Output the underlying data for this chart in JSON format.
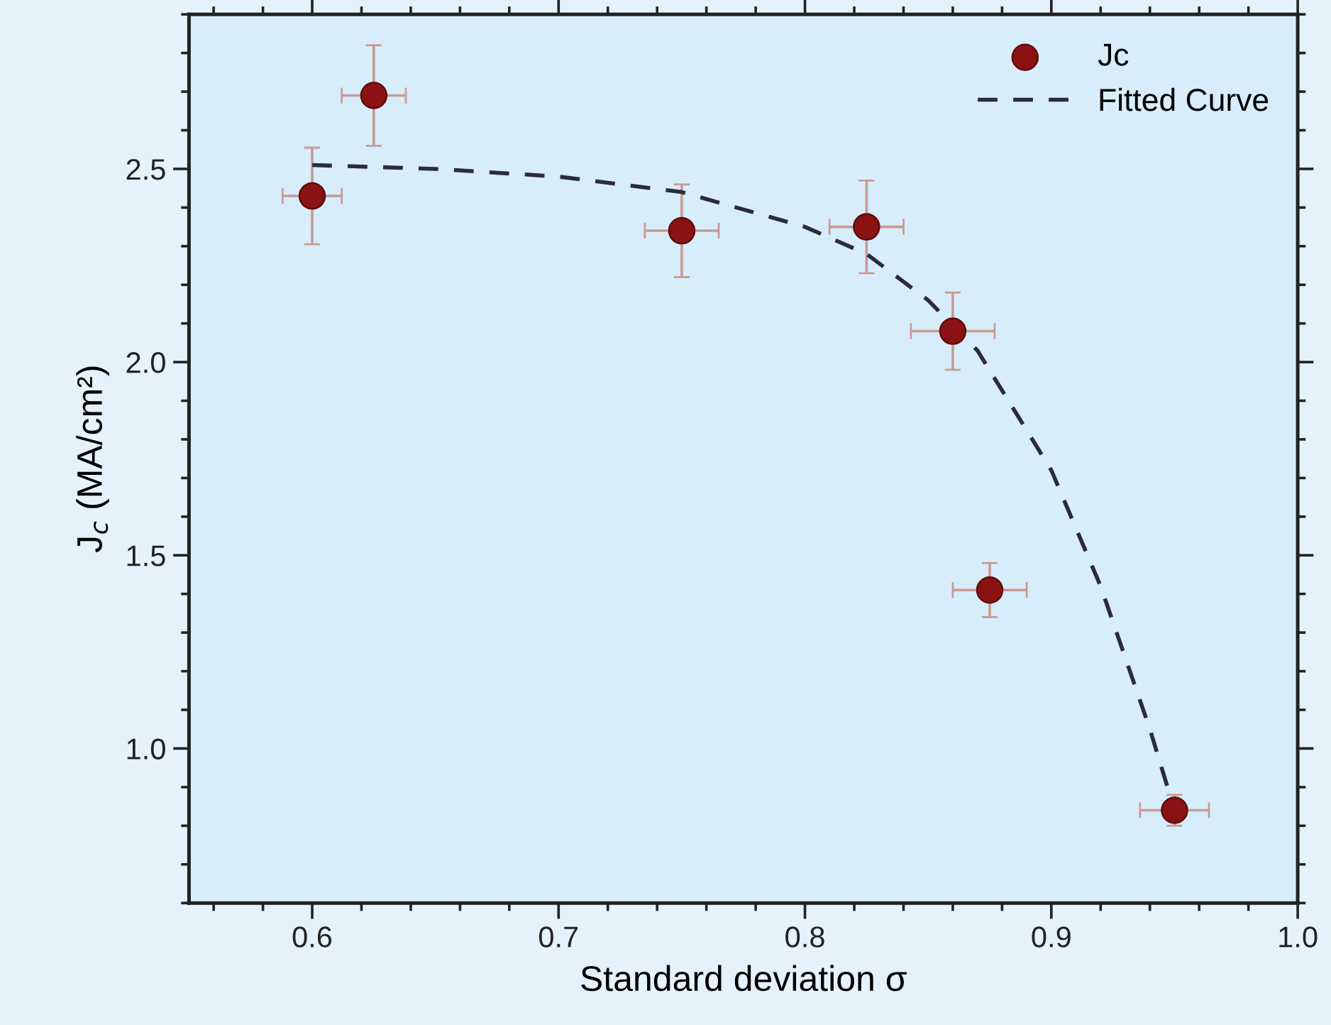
{
  "chart_data": {
    "type": "scatter",
    "xlabel": "Standard deviation σ",
    "ylabel": "J$_{c}$ (MA/cm²)",
    "series": [
      {
        "name": "Jc",
        "color": "#8b1212",
        "marker": "circle",
        "x": [
          0.6,
          0.625,
          0.75,
          0.825,
          0.86,
          0.875,
          0.95
        ],
        "values": [
          2.43,
          2.69,
          2.34,
          2.35,
          2.08,
          1.41,
          0.84
        ],
        "errors": [
          0.125,
          0.13,
          0.12,
          0.12,
          0.1,
          0.07,
          0.04
        ],
        "xerrors": [
          0.012,
          0.013,
          0.015,
          0.015,
          0.017,
          0.015,
          0.014
        ]
      },
      {
        "name": "Fitted Curve",
        "type": "line",
        "color": "#2b2b3d",
        "marker": "none",
        "line_style": "dashed",
        "x": [
          0.6,
          0.65,
          0.7,
          0.75,
          0.8,
          0.825,
          0.85,
          0.87,
          0.9,
          0.92,
          0.94,
          0.95
        ],
        "values": [
          2.51,
          2.5,
          2.48,
          2.44,
          2.35,
          2.28,
          2.16,
          2.03,
          1.72,
          1.42,
          1.05,
          0.84
        ]
      }
    ],
    "xlim": [
      0.55,
      1.0
    ],
    "ylim": [
      0.6,
      2.9
    ],
    "xticks": [
      {
        "value": 0.6,
        "label": "0.6"
      },
      {
        "value": 0.7,
        "label": "0.7"
      },
      {
        "value": 0.8,
        "label": "0.8"
      },
      {
        "value": 0.9,
        "label": "0.9"
      },
      {
        "value": 1.0,
        "label": "1.0"
      }
    ],
    "yticks": [
      {
        "value": 1.0,
        "label": "1.0"
      },
      {
        "value": 1.5,
        "label": "1.5"
      },
      {
        "value": 2.0,
        "label": "2.0"
      },
      {
        "value": 2.5,
        "label": "2.5"
      }
    ],
    "grid": false,
    "legend": "top right"
  }
}
